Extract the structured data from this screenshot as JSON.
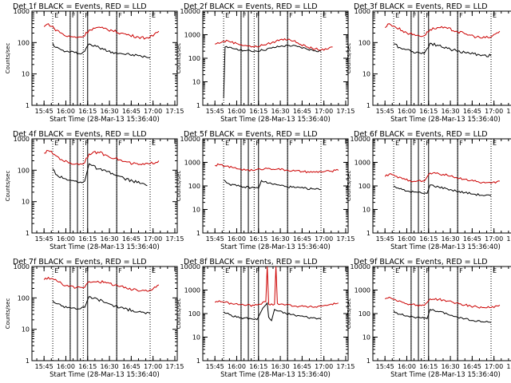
{
  "figure": {
    "ylabel": "Counts/sec",
    "xlabel": "Start Time (28-Mar-13 15:36:40)",
    "xticks": [
      "15:45",
      "16:00",
      "16:15",
      "16:30",
      "16:45",
      "17:00",
      "17:15"
    ],
    "colors": {
      "events": "#000000",
      "lld": "#cc0000",
      "markers": "#000000"
    }
  },
  "chart_data": [
    {
      "type": "line",
      "title": "Det 1f BLACK = Events, RED = LLD",
      "xlabel": "Start Time (28-Mar-13 15:36:40)",
      "ylabel": "Counts/sec",
      "xlim": [
        "15:36:40",
        "17:16:40"
      ],
      "ylim": [
        1,
        1000
      ],
      "yscale": "log",
      "yticks": [
        "1",
        "10",
        "100",
        "1000"
      ],
      "flags": [
        "E",
        "F",
        "F",
        "F",
        "E"
      ],
      "dotted_lines": [
        "15:51",
        "16:03",
        "16:12",
        "16:35",
        "16:58"
      ],
      "solid_lines": [
        "16:03",
        "16:08",
        "16:15",
        "16:35"
      ],
      "series": [
        {
          "name": "Events",
          "x": [
            "15:51",
            "15:53",
            "15:57",
            "16:00",
            "16:03",
            "16:06",
            "16:09",
            "16:11",
            "16:12",
            "16:16",
            "16:21",
            "16:26",
            "16:32",
            "16:38",
            "16:44",
            "16:50",
            "16:55",
            "16:58"
          ],
          "y": [
            95,
            70,
            58,
            52,
            50,
            48,
            45,
            45,
            50,
            90,
            75,
            60,
            50,
            45,
            41,
            38,
            35,
            32
          ]
        },
        {
          "name": "LLD",
          "x": [
            "15:45",
            "15:48",
            "15:52",
            "15:57",
            "16:00",
            "16:05",
            "16:09",
            "16:12",
            "16:16",
            "16:21",
            "16:26",
            "16:32",
            "16:38",
            "16:44",
            "16:50",
            "16:55",
            "17:00",
            "17:04"
          ],
          "y": [
            320,
            400,
            280,
            200,
            160,
            150,
            150,
            155,
            250,
            300,
            280,
            240,
            200,
            170,
            150,
            140,
            160,
            230
          ]
        }
      ]
    },
    {
      "type": "line",
      "title": "Det 2f BLACK = Events, RED = LLD",
      "xlabel": "Start Time (28-Mar-13 15:36:40)",
      "ylabel": "Counts/sec",
      "xlim": [
        "15:36:40",
        "17:16:40"
      ],
      "ylim": [
        1,
        10000
      ],
      "yscale": "log",
      "yticks": [
        "1",
        "10",
        "100",
        "1000",
        "10000"
      ],
      "flags": [
        "E",
        "F",
        "F",
        "F",
        "E"
      ],
      "dotted_lines": [
        "15:51",
        "16:03",
        "16:12",
        "16:35",
        "16:58"
      ],
      "solid_lines": [
        "16:03",
        "16:08",
        "16:15",
        "16:35"
      ],
      "series": [
        {
          "name": "Events",
          "x": [
            "15:51",
            "15:52",
            "15:54",
            "16:00",
            "16:06",
            "16:12",
            "16:18",
            "16:24",
            "16:30",
            "16:36",
            "16:42",
            "16:48",
            "16:54",
            "16:58"
          ],
          "y": [
            2,
            300,
            280,
            250,
            210,
            200,
            220,
            270,
            320,
            350,
            310,
            250,
            210,
            200
          ]
        },
        {
          "name": "LLD",
          "x": [
            "15:45",
            "15:50",
            "15:54",
            "16:00",
            "16:06",
            "16:12",
            "16:18",
            "16:24",
            "16:30",
            "16:36",
            "16:42",
            "16:48",
            "16:54",
            "17:00",
            "17:06"
          ],
          "y": [
            400,
            500,
            550,
            420,
            350,
            300,
            360,
            450,
            620,
            650,
            450,
            300,
            250,
            220,
            300
          ]
        }
      ]
    },
    {
      "type": "line",
      "title": "Det 3f BLACK = Events, RED = LLD",
      "xlabel": "Start Time (28-Mar-13 15:36:40)",
      "ylabel": "Counts/sec",
      "xlim": [
        "15:36:40",
        "17:16:40"
      ],
      "ylim": [
        1,
        1000
      ],
      "yscale": "log",
      "yticks": [
        "1",
        "10",
        "100",
        "1000"
      ],
      "flags": [
        "E",
        "F",
        "F",
        "F",
        "E"
      ],
      "dotted_lines": [
        "15:51",
        "16:03",
        "16:12",
        "16:35",
        "16:58"
      ],
      "solid_lines": [
        "16:03",
        "16:08",
        "16:15",
        "16:35"
      ],
      "series": [
        {
          "name": "Events",
          "x": [
            "15:51",
            "15:55",
            "16:00",
            "16:04",
            "16:08",
            "16:12",
            "16:16",
            "16:22",
            "16:28",
            "16:34",
            "16:40",
            "16:46",
            "16:52",
            "16:58"
          ],
          "y": [
            90,
            70,
            60,
            52,
            48,
            45,
            95,
            80,
            65,
            55,
            48,
            44,
            40,
            38
          ]
        },
        {
          "name": "LLD",
          "x": [
            "15:45",
            "15:48",
            "15:52",
            "15:57",
            "16:02",
            "16:07",
            "16:12",
            "16:16",
            "16:22",
            "16:28",
            "16:34",
            "16:40",
            "16:46",
            "16:52",
            "16:58",
            "17:04"
          ],
          "y": [
            300,
            400,
            320,
            240,
            190,
            170,
            165,
            260,
            300,
            280,
            230,
            190,
            160,
            140,
            150,
            230
          ]
        }
      ]
    },
    {
      "type": "line",
      "title": "Det 4f BLACK = Events, RED = LLD",
      "xlabel": "Start Time (28-Mar-13 15:36:40)",
      "ylabel": "Counts/sec",
      "xlim": [
        "15:36:40",
        "17:16:40"
      ],
      "ylim": [
        1,
        1000
      ],
      "yscale": "log",
      "yticks": [
        "1",
        "10",
        "100",
        "1000"
      ],
      "flags": [
        "E",
        "F",
        "F",
        "F",
        "E"
      ],
      "dotted_lines": [
        "15:51",
        "16:03",
        "16:12",
        "16:35",
        "16:58"
      ],
      "solid_lines": [
        "16:03",
        "16:08",
        "16:15",
        "16:35"
      ],
      "series": [
        {
          "name": "Events",
          "x": [
            "15:51",
            "15:54",
            "15:58",
            "16:02",
            "16:06",
            "16:10",
            "16:13",
            "16:16",
            "16:22",
            "16:28",
            "16:34",
            "16:40",
            "16:46",
            "16:52",
            "16:56"
          ],
          "y": [
            110,
            70,
            55,
            48,
            45,
            42,
            45,
            160,
            110,
            90,
            70,
            55,
            45,
            38,
            32
          ]
        },
        {
          "name": "LLD",
          "x": [
            "15:45",
            "15:48",
            "15:52",
            "15:57",
            "16:02",
            "16:07",
            "16:12",
            "16:16",
            "16:22",
            "16:28",
            "16:34",
            "16:40",
            "16:46",
            "16:52",
            "16:58",
            "17:04"
          ],
          "y": [
            350,
            420,
            320,
            220,
            170,
            160,
            160,
            330,
            380,
            300,
            240,
            190,
            160,
            150,
            160,
            200
          ]
        }
      ]
    },
    {
      "type": "line",
      "title": "Det 5f BLACK = Events, RED = LLD",
      "xlabel": "Start Time (28-Mar-13 15:36:40)",
      "ylabel": "Counts/sec",
      "xlim": [
        "15:36:40",
        "17:16:40"
      ],
      "ylim": [
        1,
        10000
      ],
      "yscale": "log",
      "yticks": [
        "1",
        "10",
        "100",
        "1000",
        "10000"
      ],
      "flags": [
        "E",
        "F",
        "F",
        "F",
        "E"
      ],
      "dotted_lines": [
        "15:51",
        "16:03",
        "16:12",
        "16:35",
        "16:58"
      ],
      "solid_lines": [
        "16:03",
        "16:08",
        "16:15",
        "16:35"
      ],
      "series": [
        {
          "name": "Events",
          "x": [
            "15:51",
            "15:55",
            "16:00",
            "16:05",
            "16:10",
            "16:15",
            "16:17",
            "16:22",
            "16:28",
            "16:34",
            "16:40",
            "16:46",
            "16:52",
            "16:58"
          ],
          "y": [
            180,
            120,
            100,
            90,
            85,
            80,
            170,
            130,
            110,
            95,
            85,
            80,
            75,
            70
          ]
        },
        {
          "name": "LLD",
          "x": [
            "15:45",
            "15:48",
            "15:52",
            "15:57",
            "16:02",
            "16:07",
            "16:12",
            "16:16",
            "16:22",
            "16:28",
            "16:34",
            "16:40",
            "16:46",
            "16:52",
            "16:58",
            "17:04",
            "17:10"
          ],
          "y": [
            750,
            800,
            700,
            600,
            520,
            480,
            450,
            520,
            560,
            520,
            470,
            430,
            400,
            380,
            400,
            420,
            460
          ]
        }
      ]
    },
    {
      "type": "line",
      "title": "Det 6f BLACK = Events, RED = LLD",
      "xlabel": "Start Time (28-Mar-13 15:36:40)",
      "ylabel": "Counts/sec",
      "xlim": [
        "15:36:40",
        "17:16:40"
      ],
      "ylim": [
        1,
        10000
      ],
      "yscale": "log",
      "yticks": [
        "1",
        "10",
        "100",
        "1000",
        "10000"
      ],
      "flags": [
        "E",
        "F",
        "F",
        "F",
        "E"
      ],
      "dotted_lines": [
        "15:51",
        "16:03",
        "16:12",
        "16:35",
        "16:58"
      ],
      "solid_lines": [
        "16:03",
        "16:08",
        "16:15",
        "16:35"
      ],
      "series": [
        {
          "name": "Events",
          "x": [
            "15:51",
            "15:55",
            "16:00",
            "16:05",
            "16:10",
            "16:14",
            "16:16",
            "16:22",
            "16:28",
            "16:34",
            "16:40",
            "16:46",
            "16:52",
            "16:58"
          ],
          "y": [
            100,
            75,
            60,
            55,
            50,
            48,
            110,
            90,
            75,
            60,
            52,
            45,
            40,
            38
          ]
        },
        {
          "name": "LLD",
          "x": [
            "15:45",
            "15:48",
            "15:52",
            "15:57",
            "16:02",
            "16:07",
            "16:12",
            "16:16",
            "16:22",
            "16:28",
            "16:34",
            "16:40",
            "16:46",
            "16:52",
            "16:58",
            "17:04"
          ],
          "y": [
            250,
            320,
            260,
            200,
            170,
            160,
            160,
            350,
            330,
            280,
            230,
            190,
            160,
            140,
            130,
            160
          ]
        }
      ]
    },
    {
      "type": "line",
      "title": "Det 7f BLACK = Events, RED = LLD",
      "xlabel": "Start Time (28-Mar-13 15:36:40)",
      "ylabel": "Counts/sec",
      "xlim": [
        "15:36:40",
        "17:16:40"
      ],
      "ylim": [
        1,
        1000
      ],
      "yscale": "log",
      "yticks": [
        "1",
        "10",
        "100",
        "1000"
      ],
      "flags": [
        "E",
        "F",
        "F",
        "F",
        "E"
      ],
      "dotted_lines": [
        "15:51",
        "16:03",
        "16:12",
        "16:35",
        "16:58"
      ],
      "solid_lines": [
        "16:03",
        "16:08",
        "16:15",
        "16:35"
      ],
      "series": [
        {
          "name": "Events",
          "x": [
            "15:51",
            "15:54",
            "15:58",
            "16:02",
            "16:06",
            "16:10",
            "16:13",
            "16:16",
            "16:22",
            "16:28",
            "16:34",
            "16:40",
            "16:46",
            "16:52",
            "16:58"
          ],
          "y": [
            80,
            65,
            55,
            50,
            48,
            45,
            50,
            110,
            90,
            70,
            55,
            45,
            40,
            35,
            32
          ]
        },
        {
          "name": "LLD",
          "x": [
            "15:45",
            "15:48",
            "15:52",
            "15:57",
            "16:02",
            "16:07",
            "16:12",
            "16:16",
            "16:22",
            "16:28",
            "16:34",
            "16:40",
            "16:46",
            "16:52",
            "16:58",
            "17:04"
          ],
          "y": [
            380,
            450,
            380,
            290,
            230,
            210,
            210,
            330,
            340,
            300,
            260,
            210,
            180,
            170,
            180,
            260
          ]
        }
      ]
    },
    {
      "type": "line",
      "title": "Det 8f BLACK = Events, RED = LLD",
      "xlabel": "Start Time (28-Mar-13 15:36:40)",
      "ylabel": "Counts/sec",
      "xlim": [
        "15:36:40",
        "17:16:40"
      ],
      "ylim": [
        1,
        10000
      ],
      "yscale": "log",
      "yticks": [
        "1",
        "10",
        "100",
        "1000",
        "10000"
      ],
      "flags": [
        "E",
        "F",
        "F",
        "F",
        "E"
      ],
      "dotted_lines": [
        "15:51",
        "16:03",
        "16:12",
        "16:35",
        "16:58"
      ],
      "solid_lines": [
        "16:03",
        "16:08",
        "16:15",
        "16:35"
      ],
      "series": [
        {
          "name": "Events",
          "x": [
            "15:51",
            "15:55",
            "16:00",
            "16:05",
            "16:10",
            "16:14",
            "16:18",
            "16:21",
            "16:22",
            "16:24",
            "16:26",
            "16:28",
            "16:34",
            "16:40",
            "16:46",
            "16:52",
            "16:58"
          ],
          "y": [
            120,
            90,
            70,
            65,
            60,
            55,
            170,
            280,
            70,
            50,
            150,
            130,
            100,
            85,
            75,
            65,
            60
          ]
        },
        {
          "name": "LLD",
          "x": [
            "15:45",
            "15:48",
            "15:52",
            "15:57",
            "16:02",
            "16:07",
            "16:12",
            "16:16",
            "16:20",
            "16:21",
            "16:22",
            "16:26",
            "16:27",
            "16:28",
            "16:34",
            "16:40",
            "16:46",
            "16:52",
            "16:58",
            "17:04",
            "17:10"
          ],
          "y": [
            300,
            350,
            300,
            260,
            240,
            230,
            220,
            250,
            320,
            10000,
            250,
            250,
            10000,
            270,
            240,
            210,
            200,
            190,
            210,
            240,
            280
          ]
        }
      ]
    },
    {
      "type": "line",
      "title": "Det 9f BLACK = Events, RED = LLD",
      "xlabel": "Start Time (28-Mar-13 15:36:40)",
      "ylabel": "Counts/sec",
      "xlim": [
        "15:36:40",
        "17:16:40"
      ],
      "ylim": [
        1,
        10000
      ],
      "yscale": "log",
      "yticks": [
        "1",
        "10",
        "100",
        "1000",
        "10000"
      ],
      "flags": [
        "E",
        "F",
        "F",
        "F",
        "E"
      ],
      "dotted_lines": [
        "15:51",
        "16:03",
        "16:12",
        "16:35",
        "16:58"
      ],
      "solid_lines": [
        "16:03",
        "16:08",
        "16:15",
        "16:35"
      ],
      "series": [
        {
          "name": "Events",
          "x": [
            "15:51",
            "15:55",
            "16:00",
            "16:05",
            "16:10",
            "16:14",
            "16:16",
            "16:22",
            "16:28",
            "16:34",
            "16:40",
            "16:46",
            "16:52",
            "16:58"
          ],
          "y": [
            130,
            95,
            80,
            70,
            65,
            60,
            150,
            120,
            95,
            75,
            60,
            50,
            45,
            42
          ]
        },
        {
          "name": "LLD",
          "x": [
            "15:45",
            "15:48",
            "15:52",
            "15:57",
            "16:02",
            "16:07",
            "16:12",
            "16:16",
            "16:22",
            "16:28",
            "16:34",
            "16:40",
            "16:46",
            "16:52",
            "16:58",
            "17:04"
          ],
          "y": [
            420,
            500,
            400,
            300,
            250,
            230,
            220,
            420,
            400,
            340,
            280,
            230,
            200,
            180,
            180,
            230
          ]
        }
      ]
    }
  ]
}
